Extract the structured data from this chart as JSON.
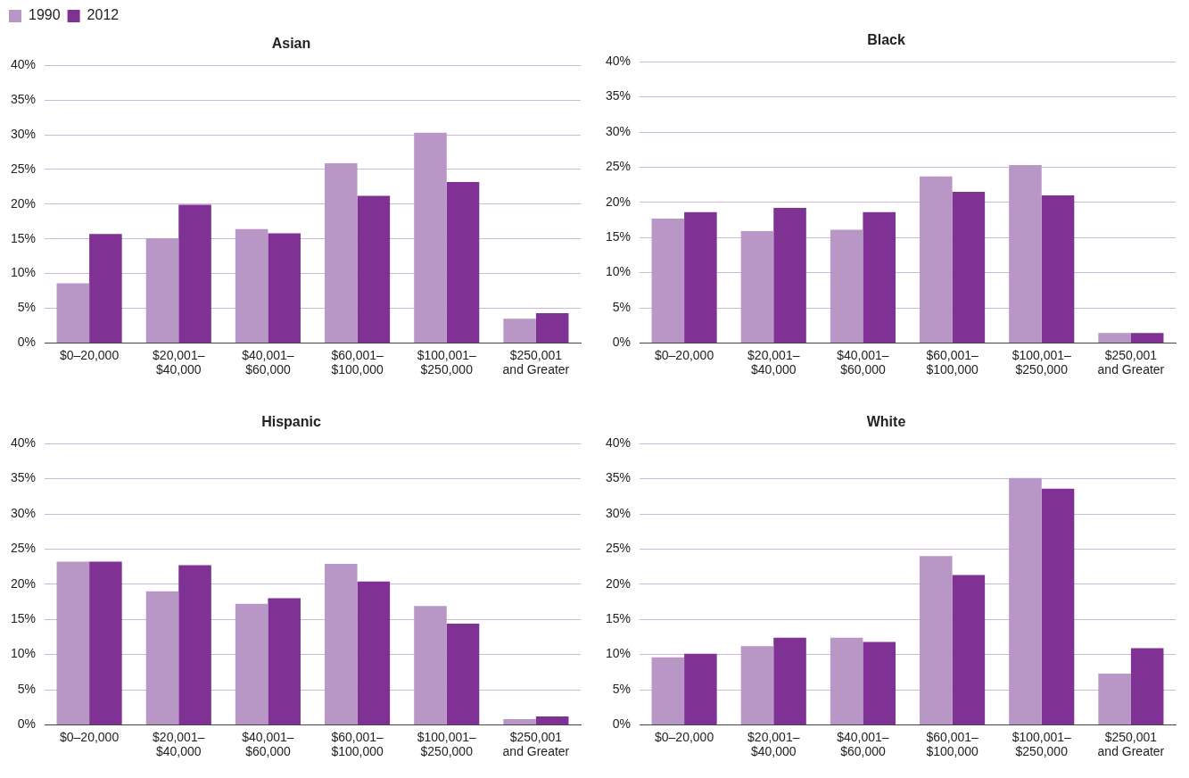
{
  "chart_data": [
    {
      "type": "bar",
      "title": "Asian",
      "legend": "top left",
      "grid": "y",
      "categories": [
        "$0–20,000",
        "$20,001–$40,000",
        "$40,001–$60,000",
        "$60,001–$100,000",
        "$100,001–$250,000",
        "$250,001 and Greater"
      ],
      "ylim": [
        0,
        40
      ],
      "yticks": [
        {
          "value": 0,
          "label": "0%"
        },
        {
          "value": 5,
          "label": "5%"
        },
        {
          "value": 10,
          "label": "10%"
        },
        {
          "value": 15,
          "label": "15%"
        },
        {
          "value": 20,
          "label": "20%"
        },
        {
          "value": 25,
          "label": "25%"
        },
        {
          "value": 30,
          "label": "30%"
        },
        {
          "value": 35,
          "label": "35%"
        },
        {
          "value": 40,
          "label": "40%"
        }
      ],
      "series": [
        {
          "name": "1990",
          "color": "#b896c6",
          "values": [
            8.6,
            15.1,
            16.4,
            25.9,
            30.3,
            3.5
          ]
        },
        {
          "name": "2012",
          "color": "#7f3194",
          "values": [
            15.7,
            19.9,
            15.8,
            21.2,
            23.2,
            4.3
          ]
        }
      ]
    },
    {
      "type": "bar",
      "title": "Black",
      "grid": "y",
      "categories": [
        "$0–20,000",
        "$20,001–$40,000",
        "$40,001–$60,000",
        "$60,001–$100,000",
        "$100,001–$250,000",
        "$250,001 and Greater"
      ],
      "ylim": [
        0,
        40
      ],
      "yticks": [
        {
          "value": 0,
          "label": "0%"
        },
        {
          "value": 5,
          "label": "5%"
        },
        {
          "value": 10,
          "label": "10%"
        },
        {
          "value": 15,
          "label": "15%"
        },
        {
          "value": 20,
          "label": "20%"
        },
        {
          "value": 25,
          "label": "25%"
        },
        {
          "value": 30,
          "label": "30%"
        },
        {
          "value": 35,
          "label": "35%"
        },
        {
          "value": 40,
          "label": "40%"
        }
      ],
      "series": [
        {
          "name": "1990",
          "color": "#b896c6",
          "values": [
            17.7,
            15.9,
            16.1,
            23.7,
            25.3,
            1.4
          ]
        },
        {
          "name": "2012",
          "color": "#7f3194",
          "values": [
            18.6,
            19.2,
            18.6,
            21.5,
            21.0,
            1.4
          ]
        }
      ]
    },
    {
      "type": "bar",
      "title": "Hispanic",
      "grid": "y",
      "categories": [
        "$0–20,000",
        "$20,001–$40,000",
        "$40,001–$60,000",
        "$60,001–$100,000",
        "$100,001–$250,000",
        "$250,001 and Greater"
      ],
      "ylim": [
        0,
        40
      ],
      "yticks": [
        {
          "value": 0,
          "label": "0%"
        },
        {
          "value": 5,
          "label": "5%"
        },
        {
          "value": 10,
          "label": "10%"
        },
        {
          "value": 15,
          "label": "15%"
        },
        {
          "value": 20,
          "label": "20%"
        },
        {
          "value": 25,
          "label": "25%"
        },
        {
          "value": 30,
          "label": "30%"
        },
        {
          "value": 35,
          "label": "35%"
        },
        {
          "value": 40,
          "label": "40%"
        }
      ],
      "series": [
        {
          "name": "1990",
          "color": "#b896c6",
          "values": [
            23.2,
            19.0,
            17.2,
            22.9,
            16.9,
            0.8
          ]
        },
        {
          "name": "2012",
          "color": "#7f3194",
          "values": [
            23.2,
            22.7,
            18.0,
            20.4,
            14.4,
            1.2
          ]
        }
      ]
    },
    {
      "type": "bar",
      "title": "White",
      "grid": "y",
      "categories": [
        "$0–20,000",
        "$20,001–$40,000",
        "$40,001–$60,000",
        "$60,001–$100,000",
        "$100,001–$250,000",
        "$250,001 and Greater"
      ],
      "ylim": [
        0,
        40
      ],
      "yticks": [
        {
          "value": 0,
          "label": "0%"
        },
        {
          "value": 5,
          "label": "5%"
        },
        {
          "value": 10,
          "label": "10%"
        },
        {
          "value": 15,
          "label": "15%"
        },
        {
          "value": 20,
          "label": "20%"
        },
        {
          "value": 25,
          "label": "25%"
        },
        {
          "value": 30,
          "label": "30%"
        },
        {
          "value": 35,
          "label": "35%"
        },
        {
          "value": 40,
          "label": "40%"
        }
      ],
      "series": [
        {
          "name": "1990",
          "color": "#b896c6",
          "values": [
            9.6,
            11.2,
            12.4,
            24.0,
            35.1,
            7.3
          ]
        },
        {
          "name": "2012",
          "color": "#7f3194",
          "values": [
            10.1,
            12.4,
            11.8,
            21.3,
            33.6,
            10.9
          ]
        }
      ]
    }
  ]
}
